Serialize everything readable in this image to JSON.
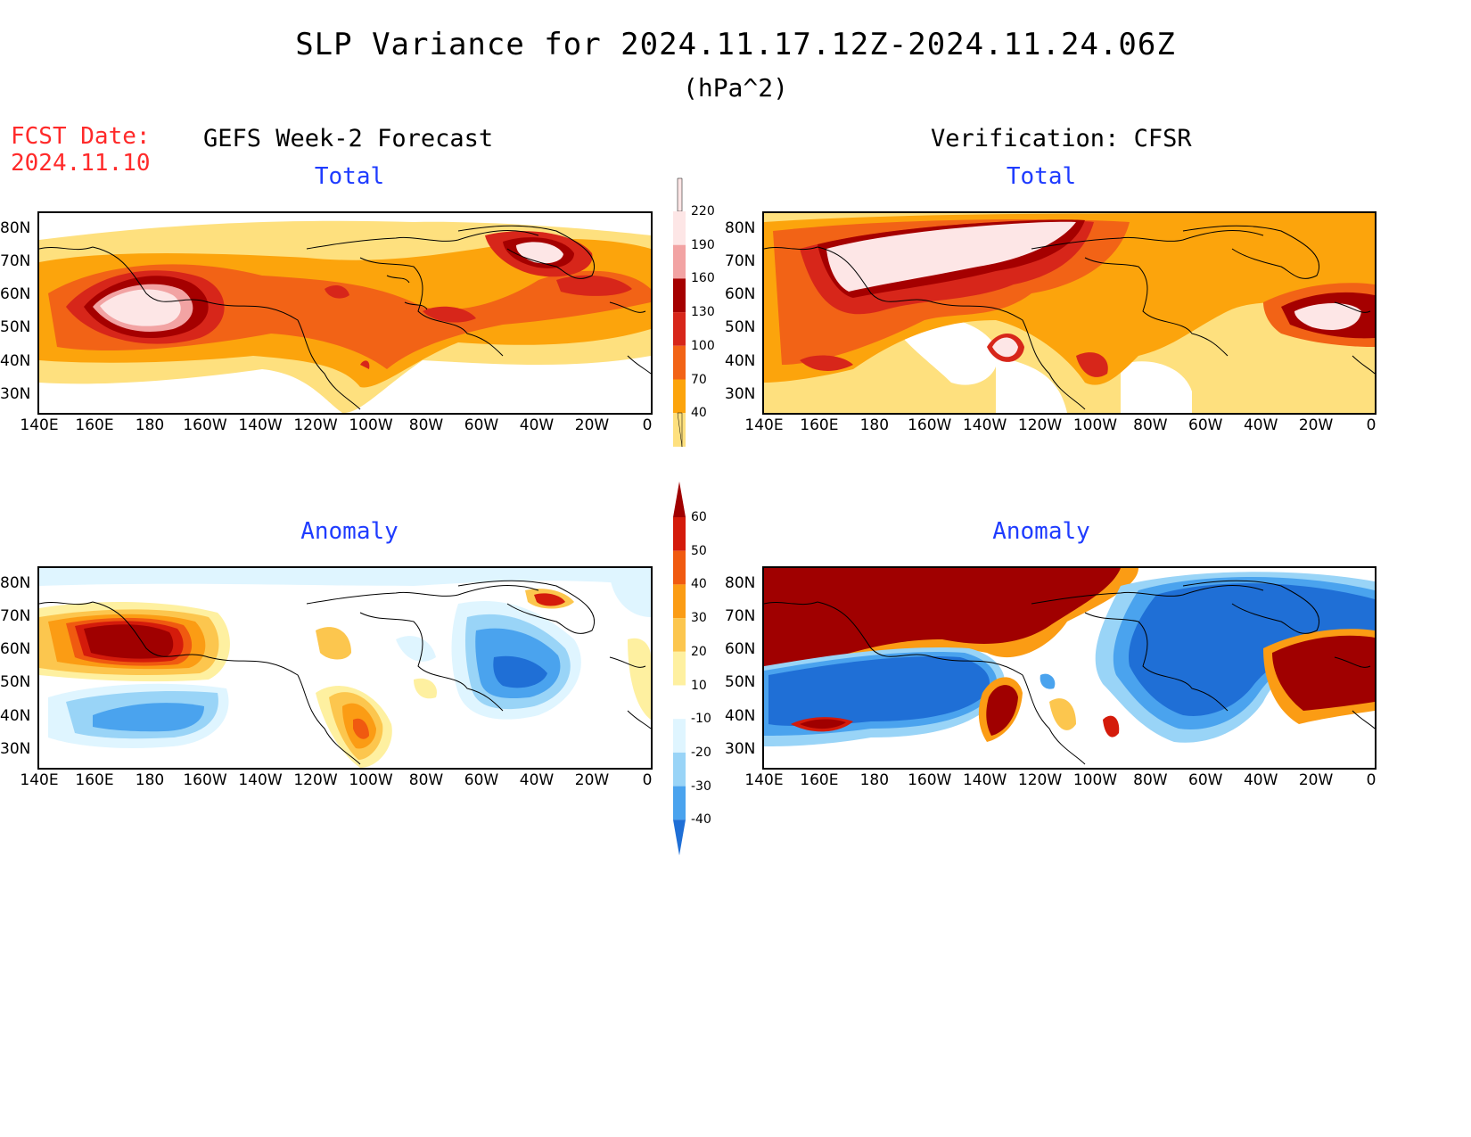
{
  "title": "SLP Variance for 2024.11.17.12Z-2024.11.24.06Z",
  "units": "(hPa^2)",
  "fcst_date_label": "FCST Date:",
  "fcst_date_value": "2024.11.10",
  "left_header": "GEFS Week-2 Forecast",
  "right_header": "Verification: CFSR",
  "panels": {
    "top_left": "Total",
    "top_right": "Total",
    "bottom_left": "Anomaly",
    "bottom_right": "Anomaly"
  },
  "lat_labels": [
    "80N",
    "70N",
    "60N",
    "50N",
    "40N",
    "30N"
  ],
  "lon_labels": [
    "140E",
    "160E",
    "180",
    "160W",
    "140W",
    "120W",
    "100W",
    "80W",
    "60W",
    "40W",
    "20W",
    "0"
  ],
  "colorbar_total": {
    "labels": [
      "220",
      "190",
      "160",
      "130",
      "100",
      "70",
      "40"
    ],
    "colors": [
      "#fde6e6",
      "#f2a3a3",
      "#a50000",
      "#d7261a",
      "#f26316",
      "#fca40c",
      "#fee07e"
    ]
  },
  "colorbar_anom": {
    "labels": [
      "60",
      "50",
      "40",
      "30",
      "20",
      "10",
      "-10",
      "-20",
      "-30",
      "-40"
    ],
    "colors": [
      "#a00000",
      "#d41b0b",
      "#f05a10",
      "#fb9c14",
      "#fcc64e",
      "#fef0a0",
      "#ffffff",
      "#dff5ff",
      "#99d4f7",
      "#4aa3ee",
      "#1f6fd6"
    ]
  }
}
